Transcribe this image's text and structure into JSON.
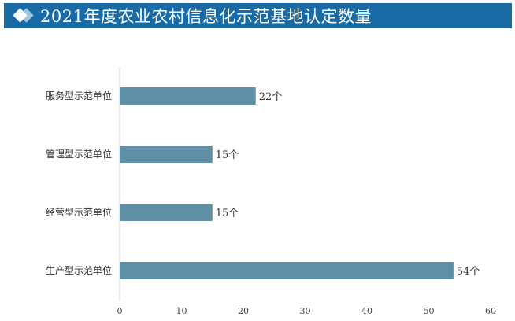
{
  "header": {
    "title": "2021年度农业农村信息化示范基地认定数量"
  },
  "chart_data": {
    "type": "bar",
    "orientation": "horizontal",
    "title": "2021年度农业农村信息化示范基地认定数量",
    "categories": [
      "服务型示范单位",
      "管理型示范单位",
      "经营型示范单位",
      "生产型示范单位"
    ],
    "values": [
      22,
      15,
      15,
      54
    ],
    "data_labels": [
      "22个",
      "15个",
      "15个",
      "54个"
    ],
    "xlim": [
      0,
      60
    ],
    "xticks": [
      0,
      10,
      20,
      30,
      40,
      50,
      60
    ],
    "grid": false,
    "bar_color": "#5f8fa5",
    "header_color": "#1a6aa6"
  }
}
